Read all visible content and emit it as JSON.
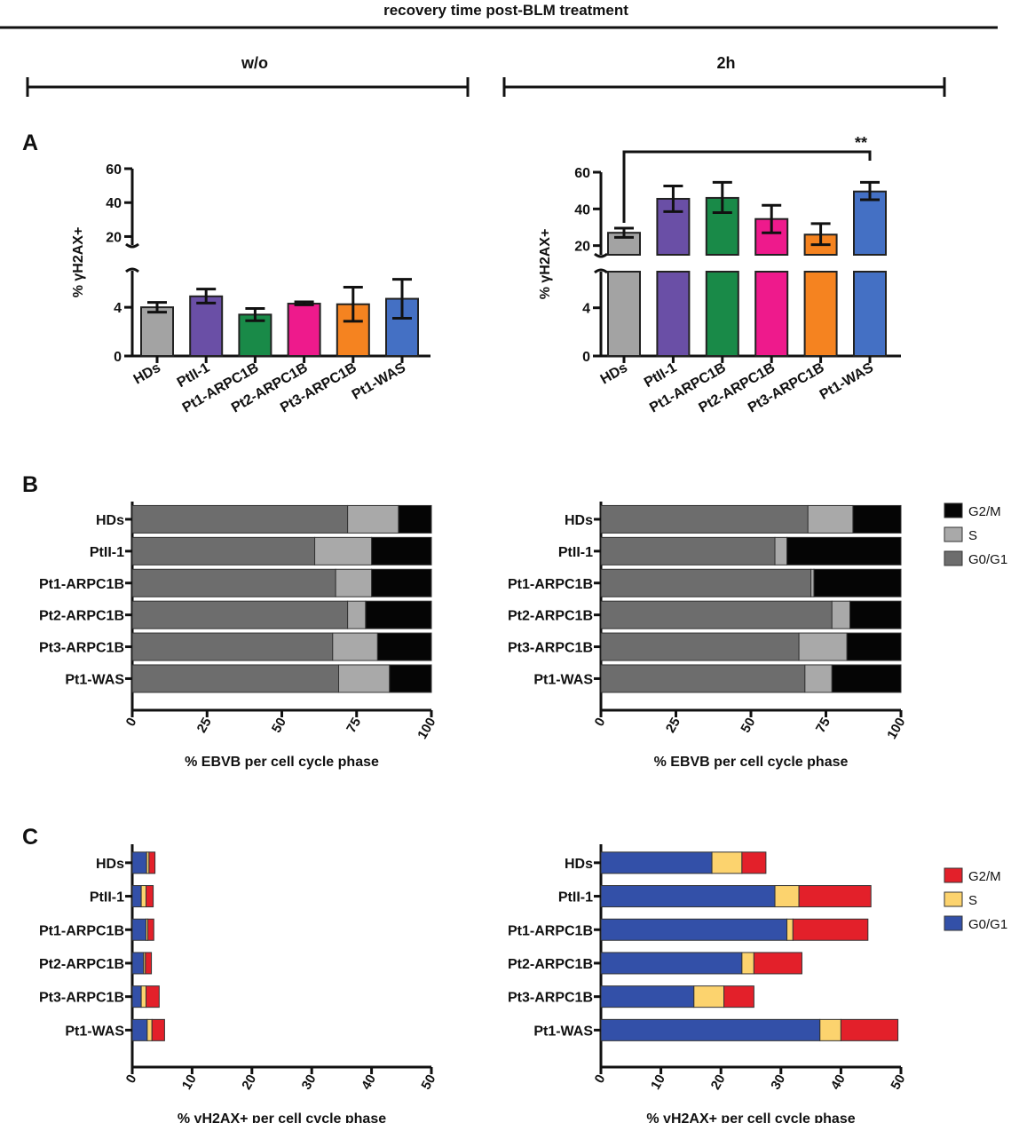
{
  "figure": {
    "header": "recovery time post-BLM treatment",
    "conditions": [
      "w/o",
      "2h"
    ],
    "panel_labels": [
      "A",
      "B",
      "C"
    ]
  },
  "chart_data": [
    {
      "id": "A-wo",
      "panel": "A",
      "type": "bar",
      "condition": "w/o",
      "ylabel": "% γH2AX+",
      "ylim_lower": [
        0,
        7
      ],
      "ylim_upper": [
        15,
        60
      ],
      "yticks_lower": [
        0,
        4
      ],
      "yticks_upper": [
        20,
        40,
        60
      ],
      "categories": [
        "HDs",
        "PtII-1",
        "Pt1-ARPC1B",
        "Pt2-ARPC1B",
        "Pt3-ARPC1B",
        "Pt1-WAS"
      ],
      "values": [
        4.0,
        4.9,
        3.4,
        4.3,
        4.25,
        4.7
      ],
      "error": [
        [
          3.6,
          4.4
        ],
        [
          4.35,
          5.5
        ],
        [
          2.9,
          3.9
        ],
        [
          4.2,
          4.45
        ],
        [
          2.85,
          5.65
        ],
        [
          3.1,
          6.3
        ]
      ],
      "colors": [
        "#a3a3a3",
        "#6a4fa6",
        "#198a48",
        "#ee1a8c",
        "#f58320",
        "#4470c4"
      ]
    },
    {
      "id": "A-2h",
      "panel": "A",
      "type": "bar",
      "condition": "2h",
      "ylabel": "% γH2AX+",
      "ylim_lower": [
        0,
        7
      ],
      "ylim_upper": [
        15,
        60
      ],
      "yticks_lower": [
        0,
        4
      ],
      "yticks_upper": [
        20,
        40,
        60
      ],
      "categories": [
        "HDs",
        "PtII-1",
        "Pt1-ARPC1B",
        "Pt2-ARPC1B",
        "Pt3-ARPC1B",
        "Pt1-WAS"
      ],
      "values": [
        27,
        45.5,
        46,
        34.5,
        26,
        49.5
      ],
      "error": [
        [
          24.5,
          29.5
        ],
        [
          38.5,
          52.5
        ],
        [
          38,
          54.5
        ],
        [
          27,
          42
        ],
        [
          20.5,
          32
        ],
        [
          45,
          54.5
        ]
      ],
      "colors": [
        "#a3a3a3",
        "#6a4fa6",
        "#198a48",
        "#ee1a8c",
        "#f58320",
        "#4470c4"
      ],
      "significance": {
        "from": "HDs",
        "to": "Pt1-WAS",
        "label": "**"
      }
    },
    {
      "id": "B-wo",
      "panel": "B",
      "type": "bar",
      "orientation": "horizontal",
      "stacked": true,
      "condition": "w/o",
      "xlabel": "% EBVB per cell cycle phase",
      "xlim": [
        0,
        100
      ],
      "xticks": [
        0,
        25,
        50,
        75,
        100
      ],
      "categories": [
        "HDs",
        "PtII-1",
        "Pt1-ARPC1B",
        "Pt2-ARPC1B",
        "Pt3-ARPC1B",
        "Pt1-WAS"
      ],
      "series": [
        {
          "name": "G0/G1",
          "color": "#6d6d6d",
          "values": [
            72,
            61,
            68,
            72,
            67,
            69
          ]
        },
        {
          "name": "S",
          "color": "#a9a9a9",
          "values": [
            17,
            19,
            12,
            6,
            15,
            17
          ]
        },
        {
          "name": "G2/M",
          "color": "#050505",
          "values": [
            11,
            20,
            20,
            22,
            18,
            14
          ]
        }
      ],
      "legend": [
        "G2/M",
        "S",
        "G0/G1"
      ]
    },
    {
      "id": "B-2h",
      "panel": "B",
      "type": "bar",
      "orientation": "horizontal",
      "stacked": true,
      "condition": "2h",
      "xlabel": "% EBVB per cell cycle phase",
      "xlim": [
        0,
        100
      ],
      "xticks": [
        0,
        25,
        50,
        75,
        100
      ],
      "categories": [
        "HDs",
        "PtII-1",
        "Pt1-ARPC1B",
        "Pt2-ARPC1B",
        "Pt3-ARPC1B",
        "Pt1-WAS"
      ],
      "series": [
        {
          "name": "G0/G1",
          "color": "#6d6d6d",
          "values": [
            69,
            58,
            70,
            77,
            66,
            68
          ]
        },
        {
          "name": "S",
          "color": "#a9a9a9",
          "values": [
            15,
            4,
            1,
            6,
            16,
            9
          ]
        },
        {
          "name": "G2/M",
          "color": "#050505",
          "values": [
            16,
            38,
            29,
            17,
            18,
            23
          ]
        }
      ],
      "legend": [
        "G2/M",
        "S",
        "G0/G1"
      ]
    },
    {
      "id": "C-wo",
      "panel": "C",
      "type": "bar",
      "orientation": "horizontal",
      "stacked": true,
      "condition": "w/o",
      "xlabel": "% γH2AX+ per cell cycle phase",
      "xlim": [
        0,
        50
      ],
      "xticks": [
        0,
        10,
        20,
        30,
        40,
        50
      ],
      "categories": [
        "HDs",
        "PtII-1",
        "Pt1-ARPC1B",
        "Pt2-ARPC1B",
        "Pt3-ARPC1B",
        "Pt1-WAS"
      ],
      "series": [
        {
          "name": "G0/G1",
          "color": "#3350a8",
          "values": [
            2.4,
            1.5,
            2.3,
            1.9,
            1.5,
            2.5
          ]
        },
        {
          "name": "S",
          "color": "#fcd36e",
          "values": [
            0.4,
            0.8,
            0.3,
            0.3,
            0.8,
            0.8
          ]
        },
        {
          "name": "G2/M",
          "color": "#e3202a",
          "values": [
            1.0,
            1.2,
            1.0,
            1.0,
            2.2,
            2.1
          ]
        }
      ],
      "legend": [
        "G2/M",
        "S",
        "G0/G1"
      ]
    },
    {
      "id": "C-2h",
      "panel": "C",
      "type": "bar",
      "orientation": "horizontal",
      "stacked": true,
      "condition": "2h",
      "xlabel": "% γH2AX+ per cell cycle phase",
      "xlim": [
        0,
        50
      ],
      "xticks": [
        0,
        10,
        20,
        30,
        40,
        50
      ],
      "categories": [
        "HDs",
        "PtII-1",
        "Pt1-ARPC1B",
        "Pt2-ARPC1B",
        "Pt3-ARPC1B",
        "Pt1-WAS"
      ],
      "series": [
        {
          "name": "G0/G1",
          "color": "#3350a8",
          "values": [
            18.5,
            29,
            31,
            23.5,
            15.5,
            36.5
          ]
        },
        {
          "name": "S",
          "color": "#fcd36e",
          "values": [
            5,
            4,
            1,
            2,
            5,
            3.5
          ]
        },
        {
          "name": "G2/M",
          "color": "#e3202a",
          "values": [
            4,
            12,
            12.5,
            8,
            5,
            9.5
          ]
        }
      ],
      "legend": [
        "G2/M",
        "S",
        "G0/G1"
      ]
    }
  ]
}
